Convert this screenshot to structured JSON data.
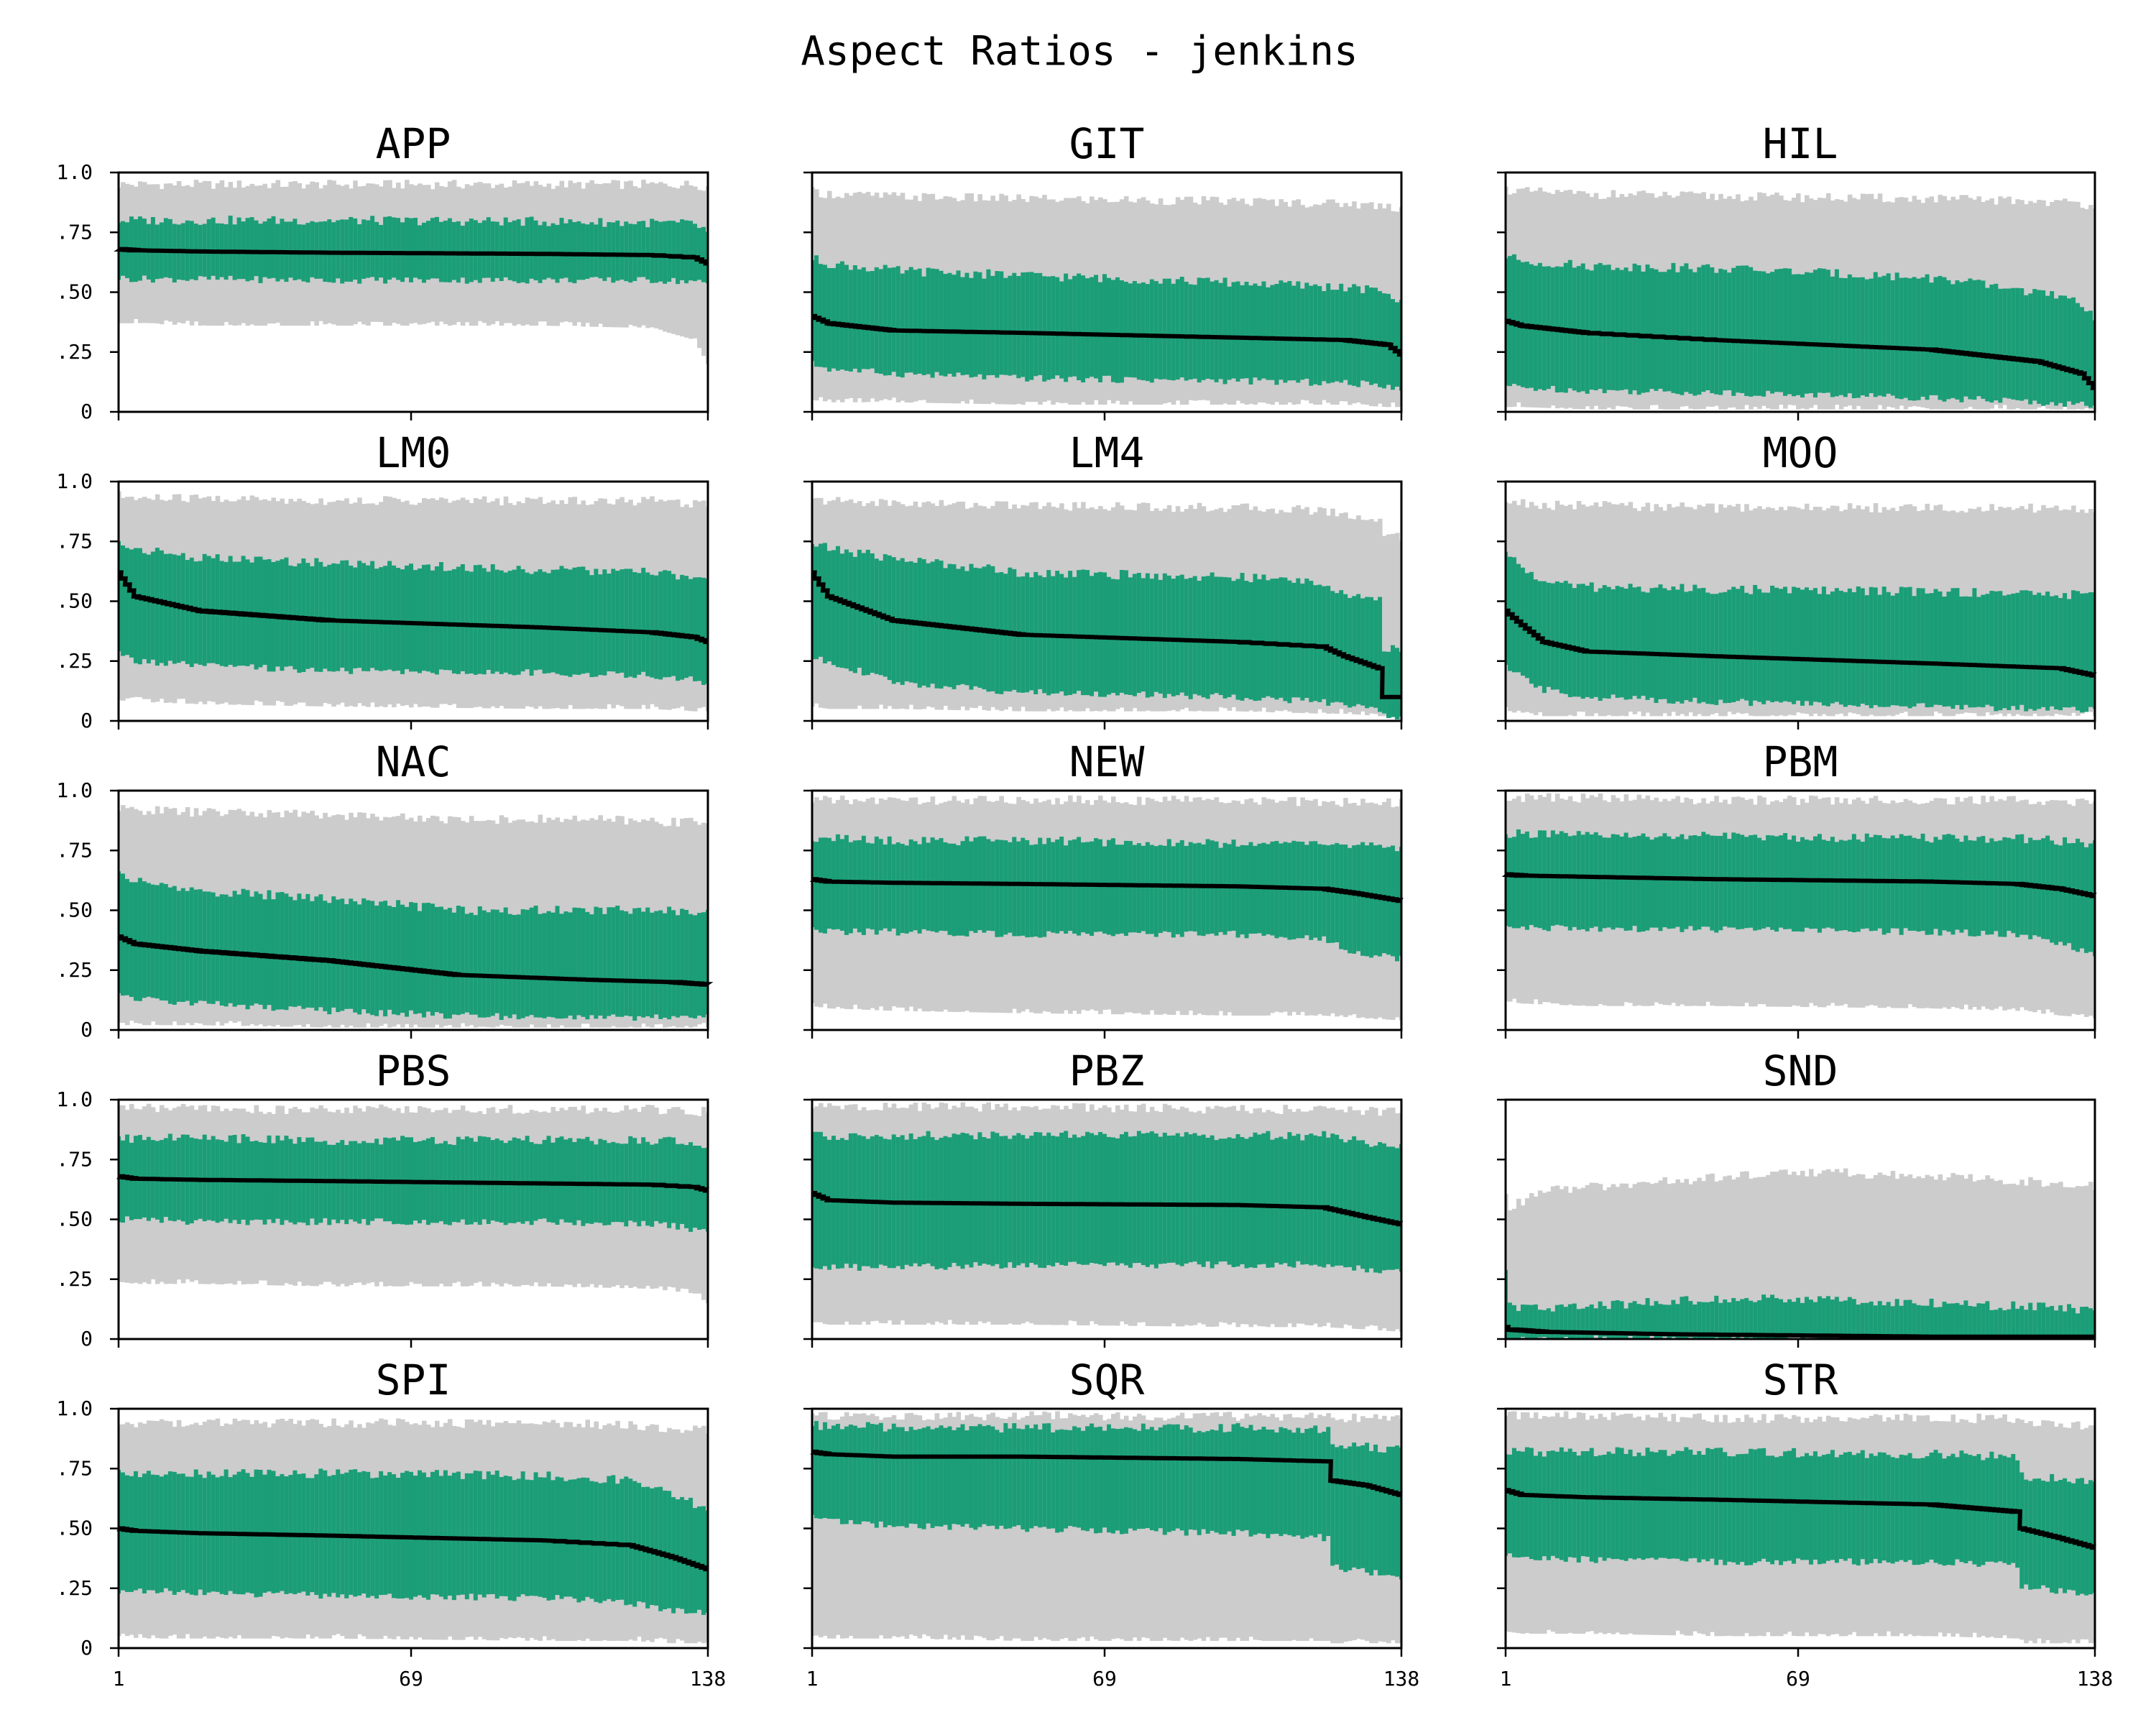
{
  "figure": {
    "title": "Aspect Ratios - jenkins"
  },
  "colors": {
    "outer_band": "#cccccc",
    "inner_band": "#1b9e77",
    "median_line": "#000000"
  },
  "chart_data": {
    "type": "area",
    "layout": "small-multiples 5x3",
    "x_range": [
      1,
      138
    ],
    "x_ticks": [
      "1",
      "69",
      "138"
    ],
    "y_range": [
      0,
      1.0
    ],
    "y_ticks": [
      "0",
      ".25",
      ".50",
      ".75",
      "1.0"
    ],
    "grid": false,
    "legend": "none",
    "panels": [
      {
        "title": "APP",
        "x": [
          1,
          5,
          20,
          50,
          100,
          125,
          135,
          138
        ],
        "median": [
          0.68,
          0.675,
          0.67,
          0.665,
          0.66,
          0.655,
          0.645,
          0.62
        ],
        "inner_low": [
          0.56,
          0.555,
          0.555,
          0.55,
          0.55,
          0.55,
          0.545,
          0.53
        ],
        "inner_high": [
          0.8,
          0.8,
          0.8,
          0.8,
          0.795,
          0.79,
          0.785,
          0.75
        ],
        "outer_low": [
          0.37,
          0.37,
          0.36,
          0.36,
          0.36,
          0.35,
          0.3,
          0.2
        ],
        "outer_high": [
          0.95,
          0.95,
          0.95,
          0.95,
          0.95,
          0.95,
          0.95,
          0.94
        ]
      },
      {
        "title": "GIT",
        "x": [
          1,
          5,
          20,
          50,
          100,
          125,
          135,
          138
        ],
        "median": [
          0.4,
          0.37,
          0.34,
          0.33,
          0.31,
          0.3,
          0.28,
          0.24
        ],
        "inner_low": [
          0.2,
          0.18,
          0.16,
          0.14,
          0.13,
          0.12,
          0.11,
          0.1
        ],
        "inner_high": [
          0.64,
          0.62,
          0.59,
          0.57,
          0.54,
          0.52,
          0.5,
          0.45
        ],
        "outer_low": [
          0.05,
          0.04,
          0.04,
          0.03,
          0.03,
          0.03,
          0.02,
          0.02
        ],
        "outer_high": [
          0.92,
          0.91,
          0.9,
          0.89,
          0.88,
          0.87,
          0.86,
          0.85
        ]
      },
      {
        "title": "HIL",
        "x": [
          1,
          5,
          20,
          50,
          100,
          125,
          135,
          138
        ],
        "median": [
          0.38,
          0.36,
          0.33,
          0.3,
          0.26,
          0.21,
          0.16,
          0.1
        ],
        "inner_low": [
          0.11,
          0.1,
          0.09,
          0.08,
          0.06,
          0.04,
          0.03,
          0.02
        ],
        "inner_high": [
          0.65,
          0.63,
          0.61,
          0.6,
          0.56,
          0.5,
          0.45,
          0.4
        ],
        "outer_low": [
          0.02,
          0.02,
          0.01,
          0.01,
          0.01,
          0.01,
          0.01,
          0.01
        ],
        "outer_high": [
          0.93,
          0.92,
          0.91,
          0.9,
          0.89,
          0.88,
          0.87,
          0.86
        ]
      },
      {
        "title": "LM0",
        "x": [
          1,
          5,
          20,
          50,
          100,
          125,
          135,
          138
        ],
        "median": [
          0.62,
          0.52,
          0.46,
          0.42,
          0.39,
          0.37,
          0.35,
          0.33
        ],
        "inner_low": [
          0.28,
          0.25,
          0.23,
          0.21,
          0.2,
          0.19,
          0.17,
          0.15
        ],
        "inner_high": [
          0.74,
          0.72,
          0.68,
          0.66,
          0.63,
          0.62,
          0.6,
          0.58
        ],
        "outer_low": [
          0.08,
          0.08,
          0.07,
          0.06,
          0.05,
          0.05,
          0.04,
          0.04
        ],
        "outer_high": [
          0.94,
          0.93,
          0.93,
          0.92,
          0.92,
          0.92,
          0.91,
          0.91
        ]
      },
      {
        "title": "LM4",
        "x": [
          1,
          5,
          20,
          50,
          100,
          120,
          125,
          133,
          134,
          138
        ],
        "median": [
          0.62,
          0.52,
          0.42,
          0.36,
          0.33,
          0.31,
          0.27,
          0.22,
          0.1,
          0.1
        ],
        "inner_low": [
          0.26,
          0.25,
          0.16,
          0.12,
          0.1,
          0.08,
          0.06,
          0.05,
          0.02,
          0.02
        ],
        "inner_high": [
          0.74,
          0.72,
          0.68,
          0.62,
          0.6,
          0.58,
          0.52,
          0.5,
          0.3,
          0.3
        ],
        "outer_low": [
          0.06,
          0.05,
          0.05,
          0.04,
          0.04,
          0.03,
          0.03,
          0.02,
          0.02,
          0.02
        ],
        "outer_high": [
          0.92,
          0.92,
          0.91,
          0.9,
          0.89,
          0.88,
          0.86,
          0.84,
          0.78,
          0.77
        ]
      },
      {
        "title": "MOO",
        "x": [
          1,
          5,
          10,
          20,
          50,
          100,
          130,
          138
        ],
        "median": [
          0.46,
          0.4,
          0.33,
          0.29,
          0.27,
          0.24,
          0.22,
          0.19
        ],
        "inner_low": [
          0.22,
          0.18,
          0.13,
          0.1,
          0.08,
          0.06,
          0.05,
          0.05
        ],
        "inner_high": [
          0.7,
          0.64,
          0.58,
          0.56,
          0.55,
          0.54,
          0.53,
          0.52
        ],
        "outer_low": [
          0.04,
          0.03,
          0.02,
          0.02,
          0.02,
          0.02,
          0.02,
          0.02
        ],
        "outer_high": [
          0.92,
          0.91,
          0.9,
          0.9,
          0.89,
          0.89,
          0.89,
          0.88
        ]
      },
      {
        "title": "NAC",
        "x": [
          1,
          5,
          20,
          50,
          80,
          110,
          130,
          138
        ],
        "median": [
          0.39,
          0.36,
          0.33,
          0.29,
          0.23,
          0.21,
          0.2,
          0.19
        ],
        "inner_low": [
          0.15,
          0.13,
          0.11,
          0.08,
          0.06,
          0.05,
          0.05,
          0.05
        ],
        "inner_high": [
          0.66,
          0.62,
          0.58,
          0.55,
          0.5,
          0.5,
          0.5,
          0.49
        ],
        "outer_low": [
          0.02,
          0.02,
          0.02,
          0.01,
          0.01,
          0.01,
          0.01,
          0.01
        ],
        "outer_high": [
          0.92,
          0.92,
          0.91,
          0.9,
          0.88,
          0.88,
          0.87,
          0.87
        ]
      },
      {
        "title": "NEW",
        "x": [
          1,
          5,
          20,
          50,
          100,
          120,
          128,
          138
        ],
        "median": [
          0.63,
          0.62,
          0.615,
          0.61,
          0.6,
          0.59,
          0.57,
          0.54
        ],
        "inner_low": [
          0.42,
          0.41,
          0.41,
          0.4,
          0.4,
          0.38,
          0.32,
          0.3
        ],
        "inner_high": [
          0.8,
          0.8,
          0.79,
          0.79,
          0.78,
          0.78,
          0.77,
          0.76
        ],
        "outer_low": [
          0.1,
          0.09,
          0.08,
          0.07,
          0.06,
          0.06,
          0.05,
          0.04
        ],
        "outer_high": [
          0.96,
          0.96,
          0.96,
          0.96,
          0.96,
          0.95,
          0.95,
          0.95
        ]
      },
      {
        "title": "PBM",
        "x": [
          1,
          5,
          20,
          50,
          100,
          120,
          130,
          138
        ],
        "median": [
          0.65,
          0.645,
          0.64,
          0.63,
          0.62,
          0.61,
          0.59,
          0.56
        ],
        "inner_low": [
          0.43,
          0.43,
          0.42,
          0.42,
          0.41,
          0.4,
          0.36,
          0.32
        ],
        "inner_high": [
          0.82,
          0.82,
          0.81,
          0.81,
          0.8,
          0.8,
          0.79,
          0.78
        ],
        "outer_low": [
          0.12,
          0.11,
          0.1,
          0.1,
          0.09,
          0.08,
          0.06,
          0.05
        ],
        "outer_high": [
          0.97,
          0.97,
          0.97,
          0.96,
          0.96,
          0.96,
          0.95,
          0.95
        ]
      },
      {
        "title": "PBS",
        "x": [
          1,
          5,
          20,
          50,
          100,
          125,
          135,
          138
        ],
        "median": [
          0.68,
          0.67,
          0.665,
          0.66,
          0.65,
          0.645,
          0.635,
          0.62
        ],
        "inner_low": [
          0.5,
          0.5,
          0.49,
          0.49,
          0.49,
          0.48,
          0.46,
          0.44
        ],
        "inner_high": [
          0.84,
          0.84,
          0.84,
          0.83,
          0.83,
          0.83,
          0.82,
          0.8
        ],
        "outer_low": [
          0.24,
          0.23,
          0.23,
          0.22,
          0.22,
          0.21,
          0.19,
          0.15
        ],
        "outer_high": [
          0.97,
          0.97,
          0.96,
          0.96,
          0.96,
          0.96,
          0.95,
          0.95
        ]
      },
      {
        "title": "PBZ",
        "x": [
          1,
          5,
          20,
          50,
          100,
          120,
          130,
          138
        ],
        "median": [
          0.61,
          0.58,
          0.57,
          0.565,
          0.56,
          0.55,
          0.51,
          0.48
        ],
        "inner_low": [
          0.3,
          0.3,
          0.3,
          0.31,
          0.31,
          0.31,
          0.29,
          0.28
        ],
        "inner_high": [
          0.85,
          0.85,
          0.85,
          0.85,
          0.85,
          0.85,
          0.82,
          0.8
        ],
        "outer_low": [
          0.07,
          0.06,
          0.06,
          0.06,
          0.05,
          0.05,
          0.04,
          0.03
        ],
        "outer_high": [
          0.97,
          0.97,
          0.97,
          0.97,
          0.96,
          0.96,
          0.95,
          0.95
        ]
      },
      {
        "title": "SND",
        "x": [
          1,
          2,
          10,
          40,
          70,
          100,
          130,
          138
        ],
        "median": [
          0.05,
          0.04,
          0.03,
          0.02,
          0.015,
          0.01,
          0.01,
          0.01
        ],
        "inner_low": [
          0.0,
          0.0,
          0.0,
          0.0,
          0.0,
          0.0,
          0.0,
          0.0
        ],
        "inner_high": [
          0.29,
          0.14,
          0.12,
          0.16,
          0.17,
          0.15,
          0.13,
          0.12
        ],
        "outer_low": [
          0.0,
          0.0,
          0.0,
          0.0,
          0.0,
          0.0,
          0.0,
          0.0
        ],
        "outer_high": [
          0.6,
          0.55,
          0.62,
          0.66,
          0.7,
          0.68,
          0.65,
          0.64
        ]
      },
      {
        "title": "SPI",
        "x": [
          1,
          5,
          20,
          50,
          100,
          120,
          130,
          138
        ],
        "median": [
          0.5,
          0.49,
          0.48,
          0.47,
          0.45,
          0.43,
          0.38,
          0.33
        ],
        "inner_low": [
          0.24,
          0.24,
          0.23,
          0.22,
          0.21,
          0.19,
          0.16,
          0.15
        ],
        "inner_high": [
          0.73,
          0.73,
          0.73,
          0.73,
          0.72,
          0.7,
          0.64,
          0.58
        ],
        "outer_low": [
          0.05,
          0.04,
          0.04,
          0.04,
          0.03,
          0.03,
          0.02,
          0.02
        ],
        "outer_high": [
          0.94,
          0.94,
          0.94,
          0.94,
          0.94,
          0.93,
          0.92,
          0.91
        ]
      },
      {
        "title": "SQR",
        "x": [
          1,
          5,
          20,
          50,
          100,
          121,
          122,
          130,
          138
        ],
        "median": [
          0.82,
          0.81,
          0.8,
          0.8,
          0.79,
          0.78,
          0.7,
          0.68,
          0.64
        ],
        "inner_low": [
          0.56,
          0.53,
          0.51,
          0.5,
          0.48,
          0.46,
          0.34,
          0.32,
          0.3
        ],
        "inner_high": [
          0.93,
          0.93,
          0.92,
          0.92,
          0.92,
          0.91,
          0.85,
          0.84,
          0.83
        ],
        "outer_low": [
          0.05,
          0.04,
          0.04,
          0.03,
          0.03,
          0.03,
          0.02,
          0.02,
          0.02
        ],
        "outer_high": [
          0.97,
          0.97,
          0.97,
          0.97,
          0.97,
          0.97,
          0.96,
          0.96,
          0.96
        ]
      },
      {
        "title": "STR",
        "x": [
          1,
          5,
          20,
          50,
          100,
          120,
          121,
          130,
          138
        ],
        "median": [
          0.66,
          0.64,
          0.63,
          0.62,
          0.6,
          0.57,
          0.5,
          0.46,
          0.42
        ],
        "inner_low": [
          0.39,
          0.38,
          0.37,
          0.36,
          0.36,
          0.35,
          0.26,
          0.24,
          0.22
        ],
        "inner_high": [
          0.82,
          0.82,
          0.82,
          0.82,
          0.81,
          0.8,
          0.72,
          0.71,
          0.7
        ],
        "outer_low": [
          0.07,
          0.06,
          0.06,
          0.05,
          0.05,
          0.04,
          0.02,
          0.02,
          0.02
        ],
        "outer_high": [
          0.97,
          0.97,
          0.97,
          0.96,
          0.96,
          0.96,
          0.94,
          0.93,
          0.93
        ]
      }
    ]
  }
}
